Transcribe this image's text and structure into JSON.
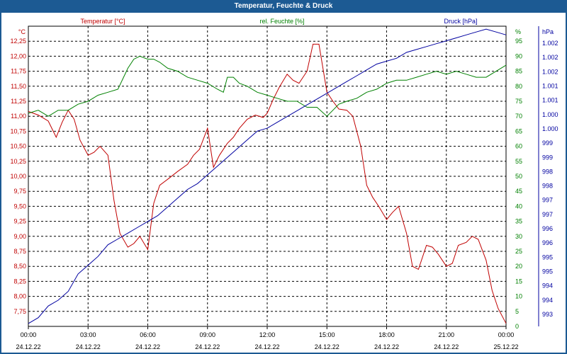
{
  "window": {
    "title": "Temperatur, Feuchte & Druck"
  },
  "chart_data": {
    "type": "line",
    "title": "Temperatur, Feuchte & Druck",
    "x_ticks": [
      {
        "time": "00:00",
        "date": "24.12.22"
      },
      {
        "time": "03:00",
        "date": "24.12.22"
      },
      {
        "time": "06:00",
        "date": "24.12.22"
      },
      {
        "time": "09:00",
        "date": "24.12.22"
      },
      {
        "time": "12:00",
        "date": "24.12.22"
      },
      {
        "time": "15:00",
        "date": "24.12.22"
      },
      {
        "time": "18:00",
        "date": "24.12.22"
      },
      {
        "time": "21:00",
        "date": "24.12.22"
      },
      {
        "time": "00:00",
        "date": "25.12.22"
      }
    ],
    "xlim_hours": [
      0,
      24
    ],
    "grid": true,
    "axes": {
      "temperature": {
        "label": "Temperatur [°C]",
        "unit": "°C",
        "color": "#c00000",
        "position": "left",
        "ylim": [
          7.5,
          12.5
        ],
        "ticks": [
          "7,75",
          "8,00",
          "8,25",
          "8,50",
          "8,75",
          "9,00",
          "9,25",
          "9,50",
          "9,75",
          "10,00",
          "10,25",
          "10,50",
          "10,75",
          "11,00",
          "11,25",
          "11,50",
          "11,75",
          "12,00",
          "12,25"
        ]
      },
      "humidity": {
        "label": "rel. Feuchte [%]",
        "unit": "%",
        "color": "#008000",
        "position": "right",
        "ylim": [
          0,
          100
        ],
        "ticks": [
          "0",
          "5",
          "10",
          "15",
          "20",
          "25",
          "30",
          "35",
          "40",
          "45",
          "50",
          "55",
          "60",
          "65",
          "70",
          "75",
          "80",
          "85",
          "90",
          "95"
        ]
      },
      "pressure": {
        "label": "Druck [hPa]",
        "unit": "hPa",
        "color": "#0000a0",
        "position": "right",
        "ylim": [
          992.5,
          1002.8
        ],
        "ticks": [
          "993",
          "994",
          "994",
          "995",
          "995",
          "996",
          "996",
          "997",
          "997",
          "998",
          "998",
          "999",
          "999",
          "1.000",
          "1.000",
          "1.001",
          "1.001",
          "1.002",
          "1.002",
          "1.002"
        ]
      }
    },
    "series": [
      {
        "name": "Temperatur [°C]",
        "axis": "temperature",
        "x": [
          0,
          0.5,
          1,
          1.4,
          1.7,
          2,
          2.3,
          2.6,
          3,
          3.3,
          3.6,
          4,
          4.3,
          4.6,
          5,
          5.3,
          5.6,
          6,
          6.3,
          6.6,
          7,
          7.5,
          8,
          8.3,
          8.6,
          9,
          9.3,
          9.6,
          10,
          10.3,
          10.6,
          11,
          11.4,
          11.8,
          12,
          12.3,
          12.6,
          13,
          13.3,
          13.6,
          14,
          14.3,
          14.6,
          15,
          15.3,
          15.6,
          16,
          16.3,
          16.7,
          17,
          17.3,
          17.6,
          18,
          18.3,
          18.6,
          19,
          19.3,
          19.6,
          20,
          20.3,
          20.6,
          21,
          21.3,
          21.6,
          22,
          22.3,
          22.6,
          23,
          23.3,
          23.6,
          24
        ],
        "y": [
          11.08,
          11.02,
          10.92,
          10.65,
          10.9,
          11.1,
          10.95,
          10.6,
          10.35,
          10.4,
          10.5,
          10.35,
          9.6,
          9.05,
          8.82,
          8.88,
          9.0,
          8.78,
          9.55,
          9.85,
          9.95,
          10.08,
          10.2,
          10.35,
          10.45,
          10.8,
          10.15,
          10.35,
          10.55,
          10.65,
          10.8,
          10.95,
          11.02,
          10.98,
          11.05,
          11.28,
          11.48,
          11.7,
          11.6,
          11.55,
          11.75,
          12.2,
          12.2,
          11.4,
          11.25,
          11.12,
          11.1,
          11.0,
          10.5,
          9.85,
          9.65,
          9.5,
          9.28,
          9.4,
          9.5,
          9.05,
          8.5,
          8.45,
          8.85,
          8.82,
          8.7,
          8.5,
          8.55,
          8.85,
          8.9,
          9.0,
          8.95,
          8.6,
          8.1,
          7.8,
          7.55
        ]
      },
      {
        "name": "rel. Feuchte [%]",
        "axis": "humidity",
        "x": [
          0,
          0.5,
          1,
          1.5,
          2,
          2.5,
          3,
          3.5,
          4,
          4.5,
          5,
          5.3,
          5.6,
          6,
          6.3,
          6.6,
          7,
          7.5,
          8,
          8.5,
          9,
          9.5,
          9.8,
          10,
          10.3,
          10.6,
          11,
          11.5,
          12,
          12.5,
          13,
          13.5,
          14,
          14.5,
          15,
          15.3,
          15.6,
          16,
          16.5,
          17,
          17.5,
          18,
          18.5,
          19,
          19.5,
          20,
          20.5,
          21,
          21.5,
          22,
          22.5,
          23,
          23.5,
          24
        ],
        "y": [
          71,
          72,
          70,
          72,
          72,
          74,
          75,
          77,
          78,
          79,
          86,
          89,
          90,
          89,
          89,
          88,
          86,
          85,
          83,
          82,
          81,
          79,
          78,
          83,
          83,
          81,
          80,
          78,
          77,
          76,
          75,
          75,
          73,
          73,
          70,
          72,
          74,
          75,
          76,
          78,
          79,
          81,
          82,
          82,
          83,
          84,
          85,
          84,
          85,
          84,
          83,
          83,
          85,
          87
        ]
      },
      {
        "name": "Druck [hPa]",
        "axis": "pressure",
        "x": [
          0,
          0.5,
          1,
          1.5,
          2,
          2.5,
          3,
          3.5,
          4,
          4.5,
          5,
          5.5,
          6,
          6.5,
          7,
          7.5,
          8,
          8.5,
          9,
          9.5,
          10,
          10.5,
          11,
          11.5,
          12,
          12.5,
          13,
          13.5,
          14,
          14.5,
          15,
          15.5,
          16,
          16.5,
          17,
          17.5,
          18,
          18.5,
          19,
          19.5,
          20,
          20.5,
          21,
          21.5,
          22,
          22.5,
          23,
          23.5,
          24
        ],
        "y": [
          992.6,
          992.8,
          993.2,
          993.4,
          993.7,
          994.3,
          994.6,
          994.9,
          995.3,
          995.5,
          995.7,
          995.9,
          996.1,
          996.3,
          996.6,
          996.9,
          997.2,
          997.4,
          997.7,
          998.0,
          998.3,
          998.6,
          998.9,
          999.2,
          999.3,
          999.5,
          999.7,
          999.9,
          1000.1,
          1000.3,
          1000.5,
          1000.7,
          1000.9,
          1001.1,
          1001.3,
          1001.5,
          1001.6,
          1001.7,
          1001.9,
          1002.0,
          1002.1,
          1002.2,
          1002.3,
          1002.4,
          1002.5,
          1002.6,
          1002.7,
          1002.6,
          1002.5
        ]
      }
    ]
  }
}
